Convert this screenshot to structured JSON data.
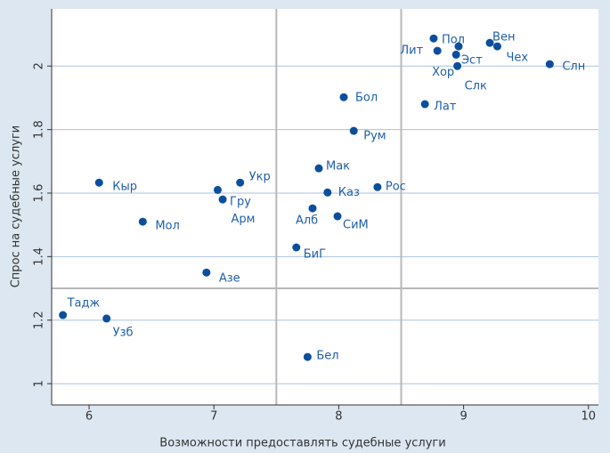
{
  "chart_data": {
    "type": "scatter",
    "xlabel": "Возможности предоставлять судебные услуги",
    "ylabel": "Спрос на судебные услуги",
    "labels": [
      "Кыр",
      "Мол",
      "Укр",
      "Арм",
      "Гру",
      "Азе",
      "Тадж",
      "Узб",
      "Бел",
      "БиГ",
      "Алб",
      "СиМ",
      "Каз",
      "Мак",
      "Рос",
      "Рум",
      "Бол",
      "Лат",
      "Пол",
      "Лит",
      "Эст",
      "Хор",
      "Слк",
      "Вен",
      "Чех",
      "Слн"
    ],
    "x": [
      6.08,
      6.43,
      7.21,
      7.03,
      7.07,
      6.94,
      5.79,
      6.14,
      7.75,
      7.66,
      7.79,
      7.99,
      7.91,
      7.84,
      8.31,
      8.12,
      8.04,
      8.69,
      8.76,
      8.79,
      8.96,
      8.94,
      8.95,
      9.21,
      9.27,
      9.69
    ],
    "values": [
      1.633,
      1.51,
      1.633,
      1.61,
      1.58,
      1.35,
      1.216,
      1.205,
      1.084,
      1.429,
      1.552,
      1.527,
      1.602,
      1.678,
      1.619,
      1.796,
      1.902,
      1.88,
      2.087,
      2.048,
      2.062,
      2.036,
      2.0,
      2.073,
      2.062,
      2.006
    ],
    "color": "#0b4f9c",
    "xlim": [
      5.7,
      10.08
    ],
    "ylim": [
      0.933,
      2.18
    ],
    "xticks": [
      6,
      7,
      8,
      9,
      10
    ],
    "yticks": [
      1,
      1.2,
      1.4,
      1.6,
      1.8,
      2
    ],
    "vlines": [
      7.5,
      8.5
    ],
    "hlines": [
      1.3
    ],
    "grid": true
  }
}
